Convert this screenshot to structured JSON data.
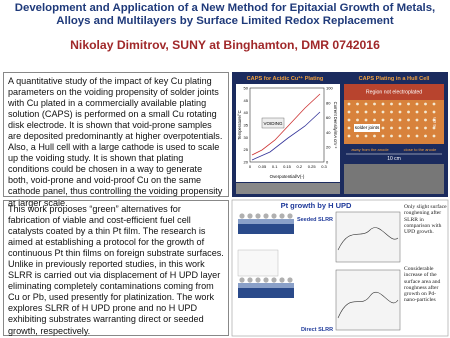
{
  "header": {
    "title": "Development and Application of a New Method for Epitaxial Growth of Metals, Alloys and Multilayers by Surface Limited Redox Replacement",
    "author": "Nikolay Dimitrov, SUNY at Binghamton, DMR 0742016"
  },
  "sections": [
    {
      "text": "A quantitative study of the impact of key Cu plating parameters on the voiding propensity of solder joints with Cu plated in a commercially available plating solution (CAPS) is performed on a small Cu rotating disk electrode. It is shown that void-prone samples are deposited predominantly at higher overpotentials. Also, a Hull cell with a large cathode is used to scale up the voiding study. It is shown that plating conditions could be chosen in a way to generate both, void-prone and void-proof Cu on the same cathode panel, thus controlling the voiding propensity at larger scale."
    },
    {
      "text": "This work proposes “green” alternatives for fabrication of viable and cost-efficient fuel cell catalysts coated by a thin Pt film. The research is aimed at establishing a protocol for the growth of continuous Pt thin films on foreign substrate surfaces. Unlike in previously reported studies, in this work SLRR is carried out via displacement of H UPD layer eliminating completely contaminations coming from Cu or Pb, used presently for platinization. The work explores SLRR of H UPD prone and no H UPD exhibiting substrates warranting direct or seeded growth, respectively."
    }
  ],
  "figures": {
    "caps_plot": {
      "title": "CAPS for Acidic Cu²⁺ Plating",
      "x_label": "Overpotential/V(-)",
      "y_label": "Temperature/°C",
      "y2_label": "Current Density/mA cm⁻²",
      "annotation": "VOIDING",
      "xticks": [
        "0",
        "0.05",
        "0.1",
        "0.15",
        "0.2",
        "0.25",
        "0.3"
      ],
      "yticks": [
        "50",
        "45",
        "40",
        "35",
        "30",
        "25",
        "20"
      ],
      "y2ticks": [
        "100",
        "80",
        "60",
        "40",
        "20",
        "0"
      ]
    },
    "hull_cell": {
      "title": "CAPS Plating in a Hull Cell",
      "region": "Region not electroplated",
      "label": "solder joints",
      "scale": "10 cm",
      "height": "6 cm",
      "left_note": "away from the anode",
      "right_note": "close to the anode"
    },
    "pt_growth": {
      "title": "Pt growth by H UPD",
      "seeded": "Seeded SLRR",
      "direct": "Direct SLRR",
      "note_1": "Only slight surface roughening after SLRR in comparison with UPD growth.",
      "note_2": "Considerable increase of the surface area and roughness after growth on Pd-nano-particles"
    }
  }
}
